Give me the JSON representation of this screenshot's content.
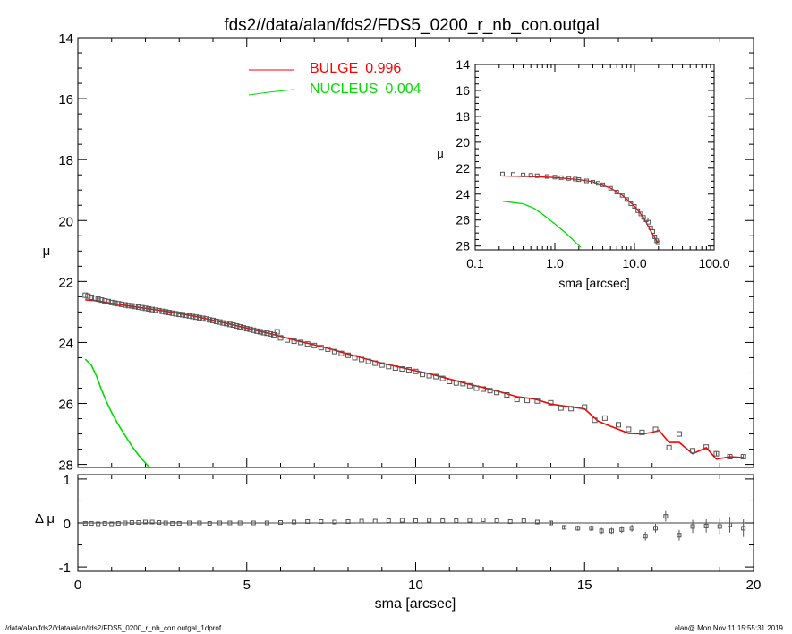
{
  "title": "fds2//data/alan/fds2/FDS5_0200_r_nb_con.outgal",
  "footer_left": "/data/alan/fds2//data/alan/fds2/FDS5_0200_r_nb_con.outgal_1dprof",
  "footer_right": "alan@  Mon Nov 11 15:55:31 2019",
  "colors": {
    "bulge": "#ff0000",
    "nucleus": "#00dd00",
    "data": "#555555"
  },
  "chart_data": [
    {
      "name": "main",
      "type": "scatter",
      "xlabel": "",
      "ylabel": "μ",
      "xlim": [
        0,
        20
      ],
      "ylim": [
        28.1,
        14
      ],
      "xticks": [
        "0",
        "5",
        "10",
        "15",
        "20"
      ],
      "yticks": [
        "14",
        "16",
        "18",
        "20",
        "22",
        "24",
        "26",
        "28"
      ],
      "legend": [
        {
          "label": "BULGE",
          "value": "0.996",
          "color": "#ff0000"
        },
        {
          "label": "NUCLEUS",
          "value": "0.004",
          "color": "#00dd00"
        }
      ],
      "series": [
        {
          "name": "data",
          "x": [
            0.22,
            0.3,
            0.4,
            0.5,
            0.6,
            0.7,
            0.8,
            0.9,
            1.0,
            1.1,
            1.2,
            1.3,
            1.4,
            1.5,
            1.6,
            1.7,
            1.8,
            1.9,
            2.0,
            2.1,
            2.2,
            2.3,
            2.4,
            2.5,
            2.6,
            2.7,
            2.8,
            2.9,
            3.0,
            3.1,
            3.2,
            3.3,
            3.4,
            3.5,
            3.6,
            3.7,
            3.8,
            3.9,
            4.0,
            4.1,
            4.2,
            4.3,
            4.4,
            4.5,
            4.6,
            4.7,
            4.8,
            4.9,
            5.0,
            5.1,
            5.2,
            5.3,
            5.4,
            5.5,
            5.6,
            5.7,
            5.8,
            5.9,
            6.0,
            6.2,
            6.4,
            6.6,
            6.8,
            7.0,
            7.2,
            7.4,
            7.6,
            7.8,
            8.0,
            8.2,
            8.4,
            8.6,
            8.8,
            9.0,
            9.2,
            9.4,
            9.6,
            9.8,
            10.0,
            10.2,
            10.4,
            10.6,
            10.8,
            11.0,
            11.2,
            11.4,
            11.6,
            11.8,
            12.0,
            12.2,
            12.4,
            12.7,
            13.0,
            13.3,
            13.6,
            14.0,
            14.3,
            14.6,
            15.0,
            15.3,
            15.6,
            16.0,
            16.3,
            16.7,
            17.1,
            17.5,
            17.8,
            18.2,
            18.6,
            18.9,
            19.3,
            19.7
          ],
          "y": [
            22.45,
            22.48,
            22.52,
            22.55,
            22.58,
            22.61,
            22.64,
            22.66,
            22.69,
            22.71,
            22.73,
            22.75,
            22.77,
            22.79,
            22.8,
            22.82,
            22.84,
            22.86,
            22.88,
            22.9,
            22.92,
            22.94,
            22.96,
            22.98,
            23.0,
            23.02,
            23.04,
            23.06,
            23.08,
            23.09,
            23.11,
            23.13,
            23.15,
            23.17,
            23.19,
            23.21,
            23.23,
            23.26,
            23.28,
            23.31,
            23.33,
            23.36,
            23.38,
            23.41,
            23.43,
            23.46,
            23.49,
            23.52,
            23.55,
            23.57,
            23.6,
            23.63,
            23.65,
            23.68,
            23.7,
            23.72,
            23.75,
            23.65,
            23.85,
            23.92,
            23.96,
            24.0,
            24.05,
            24.1,
            24.17,
            24.22,
            24.3,
            24.36,
            24.42,
            24.5,
            24.56,
            24.62,
            24.68,
            24.74,
            24.79,
            24.84,
            24.87,
            24.9,
            24.95,
            25.05,
            25.09,
            25.12,
            25.18,
            25.28,
            25.33,
            25.35,
            25.42,
            25.5,
            25.53,
            25.58,
            25.64,
            25.72,
            25.87,
            25.9,
            25.92,
            25.98,
            26.15,
            26.17,
            26.12,
            26.55,
            26.48,
            26.7,
            26.85,
            26.95,
            26.85,
            27.45,
            27.0,
            27.55,
            27.43,
            27.65,
            27.75,
            27.75
          ],
          "err": [
            0.02,
            0.02,
            0.02,
            0.02,
            0.02,
            0.02,
            0.02,
            0.02,
            0.02,
            0.02,
            0.02,
            0.02,
            0.02,
            0.02,
            0.02,
            0.02,
            0.02,
            0.02,
            0.02,
            0.02,
            0.02,
            0.02,
            0.02,
            0.02,
            0.02,
            0.02,
            0.02,
            0.02,
            0.02,
            0.02,
            0.02,
            0.02,
            0.02,
            0.02,
            0.02,
            0.02,
            0.02,
            0.02,
            0.02,
            0.02,
            0.02,
            0.02,
            0.02,
            0.02,
            0.02,
            0.02,
            0.02,
            0.02,
            0.02,
            0.02,
            0.02,
            0.02,
            0.02,
            0.02,
            0.02,
            0.02,
            0.02,
            0.02,
            0.02,
            0.02,
            0.02,
            0.02,
            0.02,
            0.02,
            0.02,
            0.02,
            0.02,
            0.02,
            0.02,
            0.02,
            0.02,
            0.02,
            0.02,
            0.02,
            0.02,
            0.02,
            0.02,
            0.02,
            0.02,
            0.02,
            0.02,
            0.02,
            0.02,
            0.02,
            0.02,
            0.02,
            0.02,
            0.02,
            0.02,
            0.02,
            0.02,
            0.02,
            0.02,
            0.02,
            0.02,
            0.02,
            0.02,
            0.02,
            0.04,
            0.04,
            0.04,
            0.05,
            0.05,
            0.05,
            0.06,
            0.06,
            0.06,
            0.07,
            0.07,
            0.08,
            0.08,
            0.08
          ]
        },
        {
          "name": "bulge",
          "type": "line",
          "color": "#ff0000",
          "x": [
            0.22,
            0.6,
            1.0,
            1.5,
            2.0,
            2.5,
            3.0,
            3.5,
            4.0,
            4.5,
            5.0,
            5.5,
            6.0,
            6.5,
            7.0,
            7.5,
            8.0,
            8.5,
            9.0,
            9.5,
            10.0,
            10.5,
            11.0,
            11.5,
            12.0,
            12.5,
            13.0,
            13.5,
            14.0,
            14.5,
            15.0,
            15.4,
            15.7,
            16.0,
            16.3,
            16.7,
            17.0,
            17.2,
            17.5,
            17.8,
            18.2,
            18.6,
            18.9,
            19.3,
            19.7
          ],
          "y": [
            22.6,
            22.64,
            22.72,
            22.8,
            22.88,
            22.96,
            23.05,
            23.15,
            23.27,
            23.4,
            23.53,
            23.66,
            23.8,
            23.95,
            24.08,
            24.22,
            24.38,
            24.53,
            24.68,
            24.8,
            24.93,
            25.05,
            25.2,
            25.35,
            25.48,
            25.62,
            25.78,
            25.85,
            26.02,
            26.1,
            26.18,
            26.58,
            26.72,
            26.85,
            26.98,
            27.0,
            26.95,
            26.88,
            27.28,
            27.28,
            27.65,
            27.45,
            27.83,
            27.75,
            27.78
          ]
        },
        {
          "name": "nucleus",
          "type": "line",
          "color": "#00dd00",
          "x": [
            0.22,
            0.4,
            0.55,
            0.7,
            0.85,
            1.0,
            1.2,
            1.4,
            1.6,
            1.8,
            2.0,
            2.1
          ],
          "y": [
            24.55,
            24.75,
            25.1,
            25.55,
            25.95,
            26.3,
            26.7,
            27.05,
            27.4,
            27.7,
            27.95,
            28.08
          ]
        }
      ]
    },
    {
      "name": "inset",
      "type": "scatter",
      "scale": "log-x",
      "xlabel": "sma [arcsec]",
      "ylabel": "μ",
      "xlim": [
        0.1,
        100
      ],
      "ylim": [
        28.3,
        14
      ],
      "xticks": [
        "0.1",
        "1.0",
        "10.0",
        "100.0"
      ],
      "yticks": [
        "14",
        "16",
        "18",
        "20",
        "22",
        "24",
        "26",
        "28"
      ],
      "series": [
        {
          "name": "data",
          "x": [
            0.22,
            0.3,
            0.4,
            0.5,
            0.6,
            0.8,
            1.0,
            1.2,
            1.5,
            1.8,
            2.0,
            2.5,
            3.0,
            3.5,
            4.0,
            5.0,
            6.0,
            7.0,
            8.0,
            9.0,
            10.0,
            11.0,
            12.0,
            13.0,
            14.0,
            15.0,
            16.0,
            17.0,
            18.0,
            19.0,
            19.7
          ],
          "y": [
            22.45,
            22.48,
            22.52,
            22.55,
            22.58,
            22.64,
            22.69,
            22.73,
            22.79,
            22.84,
            22.88,
            22.98,
            23.08,
            23.17,
            23.28,
            23.55,
            23.85,
            24.1,
            24.42,
            24.74,
            24.95,
            25.28,
            25.53,
            25.8,
            25.98,
            26.17,
            26.6,
            26.88,
            27.3,
            27.6,
            27.75
          ]
        },
        {
          "name": "bulge",
          "type": "line",
          "color": "#ff0000",
          "x": [
            0.22,
            0.5,
            1.0,
            2.0,
            3.0,
            5.0,
            7.0,
            10.0,
            13.0,
            16.0,
            19.7
          ],
          "y": [
            22.6,
            22.64,
            22.72,
            22.88,
            23.05,
            23.53,
            24.08,
            24.93,
            25.8,
            26.85,
            27.78
          ]
        },
        {
          "name": "nucleus",
          "type": "line",
          "color": "#00dd00",
          "x": [
            0.22,
            0.4,
            0.55,
            0.7,
            1.0,
            1.4,
            1.8,
            2.1
          ],
          "y": [
            24.55,
            24.75,
            25.1,
            25.55,
            26.3,
            27.05,
            27.7,
            28.08
          ]
        }
      ]
    },
    {
      "name": "residual",
      "type": "scatter",
      "xlabel": "sma [arcsec]",
      "ylabel": "Δ μ",
      "xlim": [
        0,
        20
      ],
      "ylim": [
        -1.1,
        1.1
      ],
      "xticks": [
        "0",
        "5",
        "10",
        "15",
        "20"
      ],
      "yticks": [
        "1",
        "0",
        "-1"
      ],
      "series": [
        {
          "name": "residual",
          "x": [
            0.22,
            0.4,
            0.6,
            0.8,
            1.0,
            1.2,
            1.4,
            1.6,
            1.8,
            2.0,
            2.2,
            2.4,
            2.6,
            2.8,
            3.0,
            3.3,
            3.6,
            3.9,
            4.2,
            4.5,
            4.8,
            5.2,
            5.6,
            6.0,
            6.4,
            6.8,
            7.2,
            7.6,
            8.0,
            8.4,
            8.8,
            9.2,
            9.6,
            10.0,
            10.4,
            10.8,
            11.2,
            11.6,
            12.0,
            12.4,
            12.8,
            13.2,
            13.6,
            14.0,
            14.4,
            14.8,
            15.2,
            15.5,
            15.8,
            16.1,
            16.4,
            16.8,
            17.1,
            17.4,
            17.8,
            18.2,
            18.6,
            19.0,
            19.3,
            19.7
          ],
          "y": [
            -0.01,
            -0.01,
            -0.02,
            -0.01,
            -0.02,
            -0.01,
            0.0,
            0.01,
            0.01,
            0.02,
            0.02,
            0.01,
            0.0,
            -0.01,
            -0.01,
            0.0,
            0.0,
            -0.01,
            0.0,
            0.0,
            0.0,
            0.0,
            0.0,
            0.01,
            0.02,
            0.03,
            0.03,
            0.02,
            0.03,
            0.04,
            0.04,
            0.05,
            0.06,
            0.05,
            0.06,
            0.05,
            0.05,
            0.06,
            0.07,
            0.05,
            0.03,
            0.05,
            0.02,
            0.0,
            -0.1,
            -0.12,
            -0.12,
            -0.18,
            -0.18,
            -0.15,
            -0.12,
            -0.3,
            -0.12,
            0.15,
            -0.28,
            -0.08,
            -0.07,
            -0.08,
            -0.04,
            -0.12
          ],
          "err": [
            0.02,
            0.02,
            0.02,
            0.02,
            0.02,
            0.02,
            0.02,
            0.02,
            0.02,
            0.02,
            0.02,
            0.02,
            0.02,
            0.02,
            0.02,
            0.02,
            0.02,
            0.02,
            0.02,
            0.02,
            0.02,
            0.02,
            0.02,
            0.02,
            0.02,
            0.02,
            0.02,
            0.02,
            0.02,
            0.02,
            0.02,
            0.02,
            0.02,
            0.02,
            0.03,
            0.03,
            0.03,
            0.03,
            0.03,
            0.03,
            0.04,
            0.04,
            0.04,
            0.05,
            0.05,
            0.06,
            0.06,
            0.07,
            0.07,
            0.08,
            0.08,
            0.1,
            0.1,
            0.12,
            0.12,
            0.15,
            0.15,
            0.18,
            0.18,
            0.2
          ]
        }
      ]
    }
  ]
}
